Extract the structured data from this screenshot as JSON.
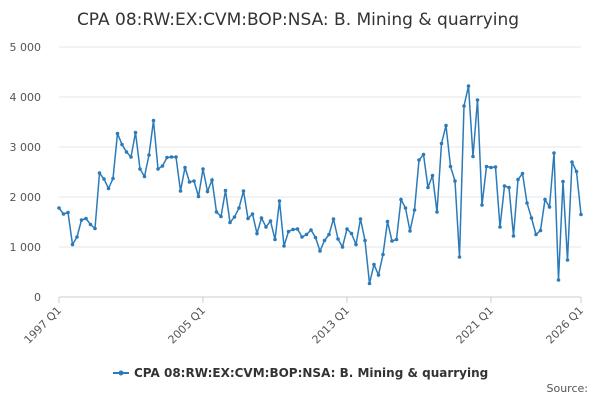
{
  "chart_data": {
    "type": "line",
    "title": "CPA 08:RW:EX:CVM:BOP:NSA: B. Mining & quarrying",
    "source": "Source:",
    "categories": [
      "1997 Q1",
      null,
      null,
      null,
      null,
      null,
      null,
      null,
      null,
      null,
      null,
      null,
      null,
      null,
      null,
      null,
      null,
      null,
      null,
      null,
      null,
      null,
      null,
      null,
      null,
      null,
      null,
      null,
      null,
      null,
      null,
      null,
      "2005 Q1",
      null,
      null,
      null,
      null,
      null,
      null,
      null,
      null,
      null,
      null,
      null,
      null,
      null,
      null,
      null,
      null,
      null,
      null,
      null,
      null,
      null,
      null,
      null,
      null,
      null,
      null,
      null,
      null,
      null,
      null,
      null,
      "2013 Q1",
      null,
      null,
      null,
      null,
      null,
      null,
      null,
      null,
      null,
      null,
      null,
      null,
      null,
      null,
      null,
      null,
      null,
      null,
      null,
      null,
      null,
      null,
      null,
      null,
      null,
      null,
      null,
      null,
      null,
      null,
      null,
      "2021 Q1",
      null,
      null,
      null,
      null,
      null,
      null,
      null,
      null,
      null,
      null,
      null,
      null,
      null,
      null,
      null,
      null,
      null,
      null,
      null,
      "2026 Q1"
    ],
    "series": [
      {
        "name": "CPA 08:RW:EX:CVM:BOP:NSA: B. Mining & quarrying",
        "color": "#2b7bba",
        "values": [
          1780,
          1660,
          1690,
          1050,
          1200,
          1540,
          1570,
          1450,
          1370,
          2480,
          2360,
          2170,
          2370,
          3270,
          3050,
          2900,
          2800,
          3290,
          2560,
          2410,
          2840,
          3530,
          2560,
          2620,
          2790,
          2800,
          2800,
          2120,
          2590,
          2300,
          2320,
          2010,
          2560,
          2110,
          2340,
          1700,
          1610,
          2130,
          1490,
          1600,
          1780,
          2120,
          1570,
          1660,
          1270,
          1580,
          1400,
          1520,
          1150,
          1920,
          1020,
          1310,
          1350,
          1360,
          1200,
          1250,
          1340,
          1190,
          920,
          1130,
          1250,
          1560,
          1160,
          1000,
          1360,
          1270,
          1050,
          1560,
          1130,
          270,
          650,
          440,
          850,
          1510,
          1120,
          1150,
          1950,
          1780,
          1320,
          1740,
          2740,
          2850,
          2190,
          2430,
          1700,
          3070,
          3430,
          2610,
          2320,
          800,
          3820,
          4220,
          2810,
          3940,
          1840,
          2610,
          2590,
          2600,
          1400,
          2220,
          2190,
          1220,
          2350,
          2470,
          1880,
          1580,
          1250,
          1330,
          1950,
          1800,
          2880,
          340,
          2310,
          740,
          2700,
          2510,
          1650
        ]
      }
    ],
    "ylim": [
      0,
      5000
    ],
    "yticks": [
      0,
      {
        "value": 1000,
        "label": "1 000"
      },
      {
        "value": 2000,
        "label": "2 000"
      },
      {
        "value": 3000,
        "label": "3 000"
      },
      {
        "value": 4000,
        "label": "4 000"
      },
      {
        "value": 5000,
        "label": "5 000"
      }
    ],
    "grid": true
  }
}
